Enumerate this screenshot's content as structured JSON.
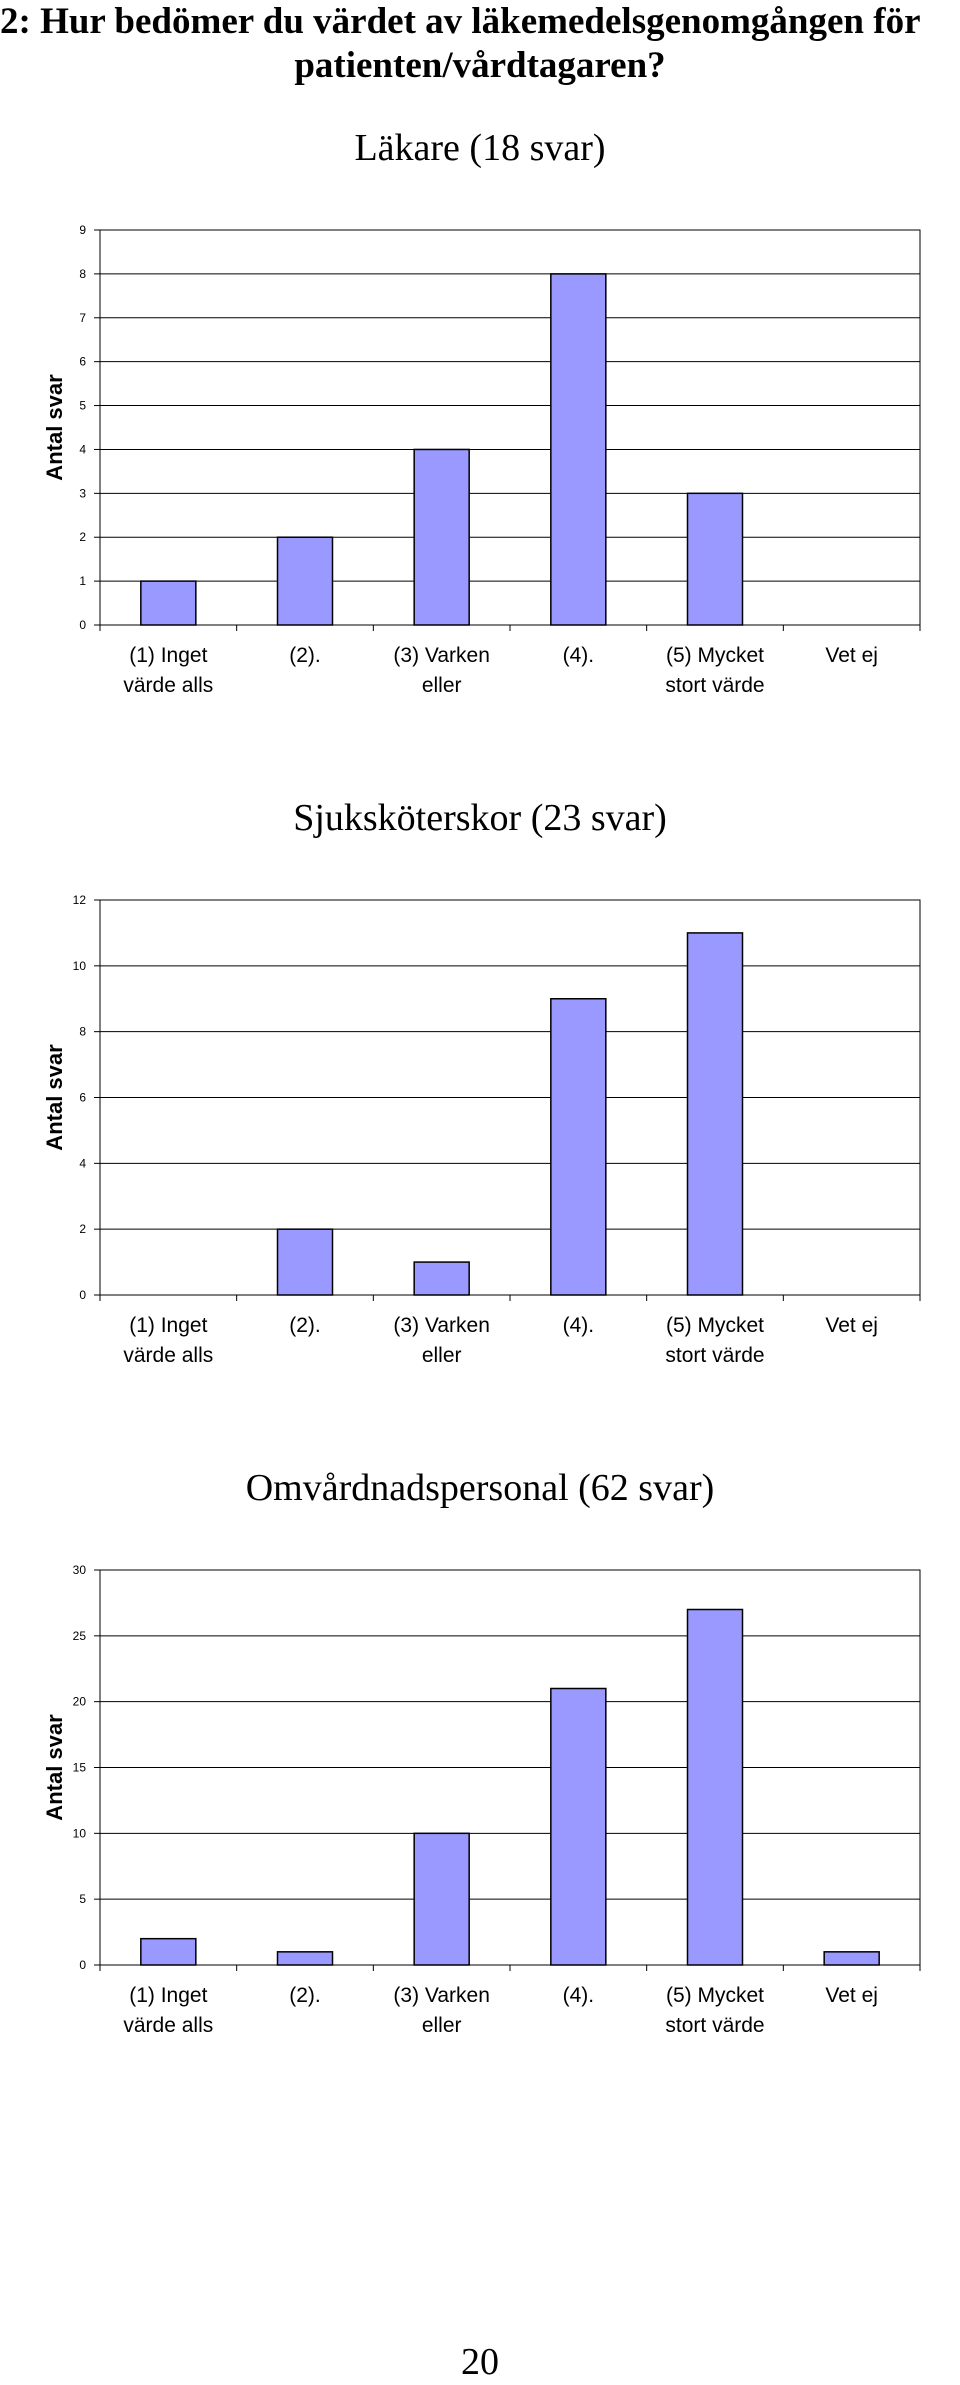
{
  "heading": {
    "line1": "2: Hur bedömer du värdet av läkemedelsgenomgången för",
    "line2": "patienten/vårdtagaren?"
  },
  "chart_data": [
    {
      "type": "bar",
      "title": "Läkare (18 svar)",
      "ylabel": "Antal svar",
      "xlabel": "",
      "categories": [
        [
          "(1) Inget",
          "värde alls"
        ],
        [
          "(2)."
        ],
        [
          "(3) Varken",
          "eller"
        ],
        [
          "(4)."
        ],
        [
          "(5) Mycket",
          "stort värde"
        ],
        [
          "Vet ej"
        ]
      ],
      "values": [
        1,
        2,
        4,
        8,
        3,
        0
      ],
      "yticks": [
        0,
        1,
        2,
        3,
        4,
        5,
        6,
        7,
        8,
        9
      ],
      "ylim": [
        0,
        9
      ],
      "grid": true,
      "bar_color": "#9999ff"
    },
    {
      "type": "bar",
      "title": "Sjuksköterskor (23 svar)",
      "ylabel": "Antal svar",
      "xlabel": "",
      "categories": [
        [
          "(1) Inget",
          "värde alls"
        ],
        [
          "(2)."
        ],
        [
          "(3) Varken",
          "eller"
        ],
        [
          "(4)."
        ],
        [
          "(5) Mycket",
          "stort värde"
        ],
        [
          "Vet ej"
        ]
      ],
      "values": [
        0,
        2,
        1,
        9,
        11,
        0
      ],
      "yticks": [
        0,
        2,
        4,
        6,
        8,
        10,
        12
      ],
      "ylim": [
        0,
        12
      ],
      "grid": true,
      "bar_color": "#9999ff"
    },
    {
      "type": "bar",
      "title": "Omvårdnadspersonal (62 svar)",
      "ylabel": "Antal svar",
      "xlabel": "",
      "categories": [
        [
          "(1) Inget",
          "värde alls"
        ],
        [
          "(2)."
        ],
        [
          "(3) Varken",
          "eller"
        ],
        [
          "(4)."
        ],
        [
          "(5) Mycket",
          "stort värde"
        ],
        [
          "Vet ej"
        ]
      ],
      "values": [
        2,
        1,
        10,
        21,
        27,
        1
      ],
      "yticks": [
        0,
        5,
        10,
        15,
        20,
        25,
        30
      ],
      "ylim": [
        0,
        30
      ],
      "grid": true,
      "bar_color": "#9999ff"
    }
  ],
  "page_number": "20"
}
